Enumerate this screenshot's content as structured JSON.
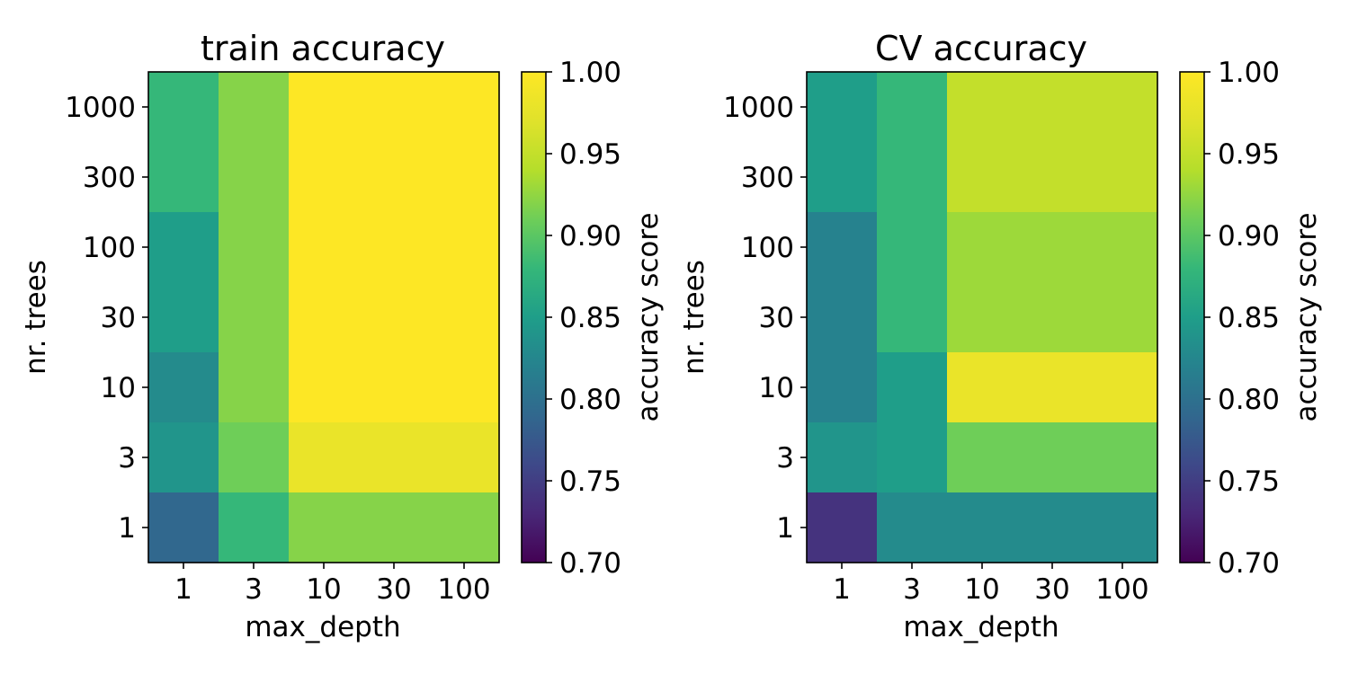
{
  "chart_data": [
    {
      "type": "heatmap",
      "title": "train accuracy",
      "xlabel": "max_depth",
      "ylabel": "nr. trees",
      "x_categories": [
        "1",
        "3",
        "10",
        "30",
        "100"
      ],
      "y_categories": [
        "1000",
        "300",
        "100",
        "30",
        "10",
        "3",
        "1"
      ],
      "values": [
        [
          0.88,
          0.92,
          1.0,
          1.0,
          1.0
        ],
        [
          0.88,
          0.92,
          1.0,
          1.0,
          1.0
        ],
        [
          0.85,
          0.92,
          1.0,
          1.0,
          1.0
        ],
        [
          0.85,
          0.92,
          1.0,
          1.0,
          1.0
        ],
        [
          0.83,
          0.92,
          1.0,
          1.0,
          1.0
        ],
        [
          0.84,
          0.91,
          0.98,
          0.98,
          0.98
        ],
        [
          0.79,
          0.88,
          0.92,
          0.92,
          0.92
        ]
      ],
      "colormap": "viridis",
      "colorbar": {
        "label": "accuracy score",
        "range": [
          0.7,
          1.0
        ],
        "ticks": [
          "0.70",
          "0.75",
          "0.80",
          "0.85",
          "0.90",
          "0.95",
          "1.00"
        ]
      }
    },
    {
      "type": "heatmap",
      "title": "CV accuracy",
      "xlabel": "max_depth",
      "ylabel": "nr. trees",
      "x_categories": [
        "1",
        "3",
        "10",
        "30",
        "100"
      ],
      "y_categories": [
        "1000",
        "300",
        "100",
        "30",
        "10",
        "3",
        "1"
      ],
      "values": [
        [
          0.85,
          0.88,
          0.95,
          0.95,
          0.95
        ],
        [
          0.85,
          0.88,
          0.95,
          0.95,
          0.95
        ],
        [
          0.82,
          0.88,
          0.93,
          0.93,
          0.93
        ],
        [
          0.82,
          0.88,
          0.93,
          0.93,
          0.93
        ],
        [
          0.82,
          0.85,
          0.98,
          0.98,
          0.98
        ],
        [
          0.84,
          0.85,
          0.91,
          0.91,
          0.91
        ],
        [
          0.74,
          0.83,
          0.83,
          0.83,
          0.83
        ]
      ],
      "colormap": "viridis",
      "colorbar": {
        "label": "accuracy score",
        "range": [
          0.7,
          1.0
        ],
        "ticks": [
          "0.70",
          "0.75",
          "0.80",
          "0.85",
          "0.90",
          "0.95",
          "1.00"
        ]
      }
    }
  ]
}
